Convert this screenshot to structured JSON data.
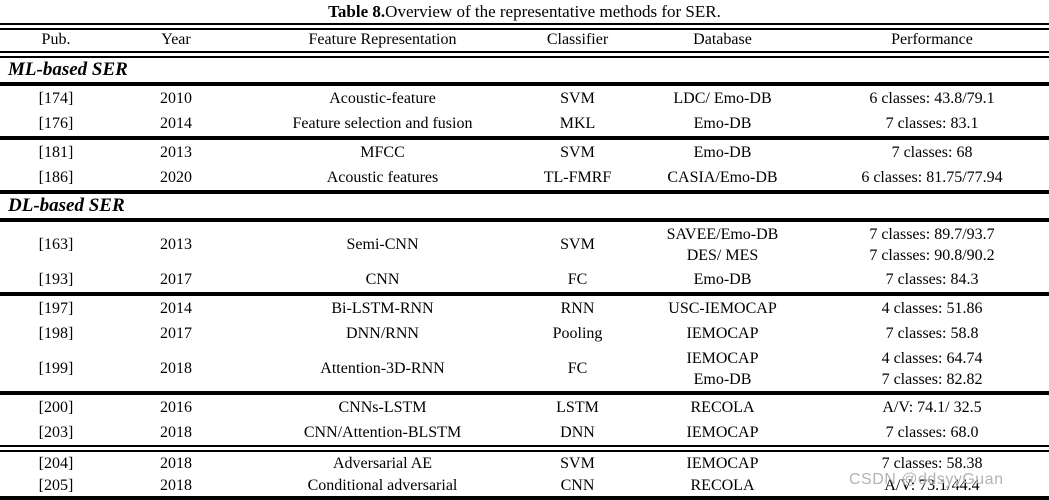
{
  "title": {
    "bold": "Table 8.",
    "rest": " Overview of the representative methods for SER."
  },
  "columns": [
    "Pub.",
    "Year",
    "Feature Representation",
    "Classifier",
    "Database",
    "Performance"
  ],
  "watermark": "CSDN @ddsyyGuan",
  "sections": [
    {
      "label": "ML-based SER",
      "groups": [
        {
          "rows": [
            {
              "pub": "[174]",
              "year": "2010",
              "feature": "Acoustic-feature",
              "classifier": "SVM",
              "database": [
                "LDC/ Emo-DB"
              ],
              "performance": [
                "6 classes: 43.8/79.1"
              ]
            },
            {
              "pub": "[176]",
              "year": "2014",
              "feature": "Feature selection and fusion",
              "classifier": "MKL",
              "database": [
                "Emo-DB"
              ],
              "performance": [
                "7 classes: 83.1"
              ]
            }
          ]
        },
        {
          "rows": [
            {
              "pub": "[181]",
              "year": "2013",
              "feature": "MFCC",
              "classifier": "SVM",
              "database": [
                "Emo-DB"
              ],
              "performance": [
                "7 classes: 68"
              ]
            },
            {
              "pub": "[186]",
              "year": "2020",
              "feature": "Acoustic features",
              "classifier": "TL-FMRF",
              "database": [
                "CASIA/Emo-DB"
              ],
              "performance": [
                "6 classes: 81.75/77.94"
              ]
            }
          ]
        }
      ]
    },
    {
      "label": "DL-based SER",
      "groups": [
        {
          "rows": [
            {
              "pub": "[163]",
              "year": "2013",
              "feature": "Semi-CNN",
              "classifier": "SVM",
              "database": [
                "SAVEE/Emo-DB",
                "DES/ MES"
              ],
              "performance": [
                "7 classes: 89.7/93.7",
                "7 classes: 90.8/90.2"
              ]
            },
            {
              "pub": "[193]",
              "year": "2017",
              "feature": "CNN",
              "classifier": "FC",
              "database": [
                "Emo-DB"
              ],
              "performance": [
                "7 classes: 84.3"
              ]
            }
          ]
        },
        {
          "rows": [
            {
              "pub": "[197]",
              "year": "2014",
              "feature": "Bi-LSTM-RNN",
              "classifier": "RNN",
              "database": [
                "USC-IEMOCAP"
              ],
              "performance": [
                "4 classes: 51.86"
              ]
            },
            {
              "pub": "[198]",
              "year": "2017",
              "feature": "DNN/RNN",
              "classifier": "Pooling",
              "database": [
                "IEMOCAP"
              ],
              "performance": [
                "7 classes: 58.8"
              ]
            },
            {
              "pub": "[199]",
              "year": "2018",
              "feature": "Attention-3D-RNN",
              "classifier": "FC",
              "database": [
                "IEMOCAP",
                "Emo-DB"
              ],
              "performance": [
                "4 classes: 64.74",
                "7 classes: 82.82"
              ]
            }
          ]
        },
        {
          "rows": [
            {
              "pub": "[200]",
              "year": "2016",
              "feature": "CNNs-LSTM",
              "classifier": "LSTM",
              "database": [
                "RECOLA"
              ],
              "performance": [
                "A/V: 74.1/ 32.5"
              ]
            },
            {
              "pub": "[203]",
              "year": "2018",
              "feature": "CNN/Attention-BLSTM",
              "classifier": "DNN",
              "database": [
                "IEMOCAP"
              ],
              "performance": [
                "7 classes: 68.0"
              ]
            }
          ]
        },
        {
          "rule": "double",
          "short": true,
          "rows": [
            {
              "pub": "[204]",
              "year": "2018",
              "feature": "Adversarial AE",
              "classifier": "SVM",
              "database": [
                "IEMOCAP"
              ],
              "performance": [
                "7 classes: 58.38"
              ]
            },
            {
              "pub": "[205]",
              "year": "2018",
              "feature": "Conditional adversarial",
              "classifier": "CNN",
              "database": [
                "RECOLA"
              ],
              "performance": [
                "A/V: 73.1/44.4"
              ]
            }
          ]
        }
      ]
    }
  ]
}
